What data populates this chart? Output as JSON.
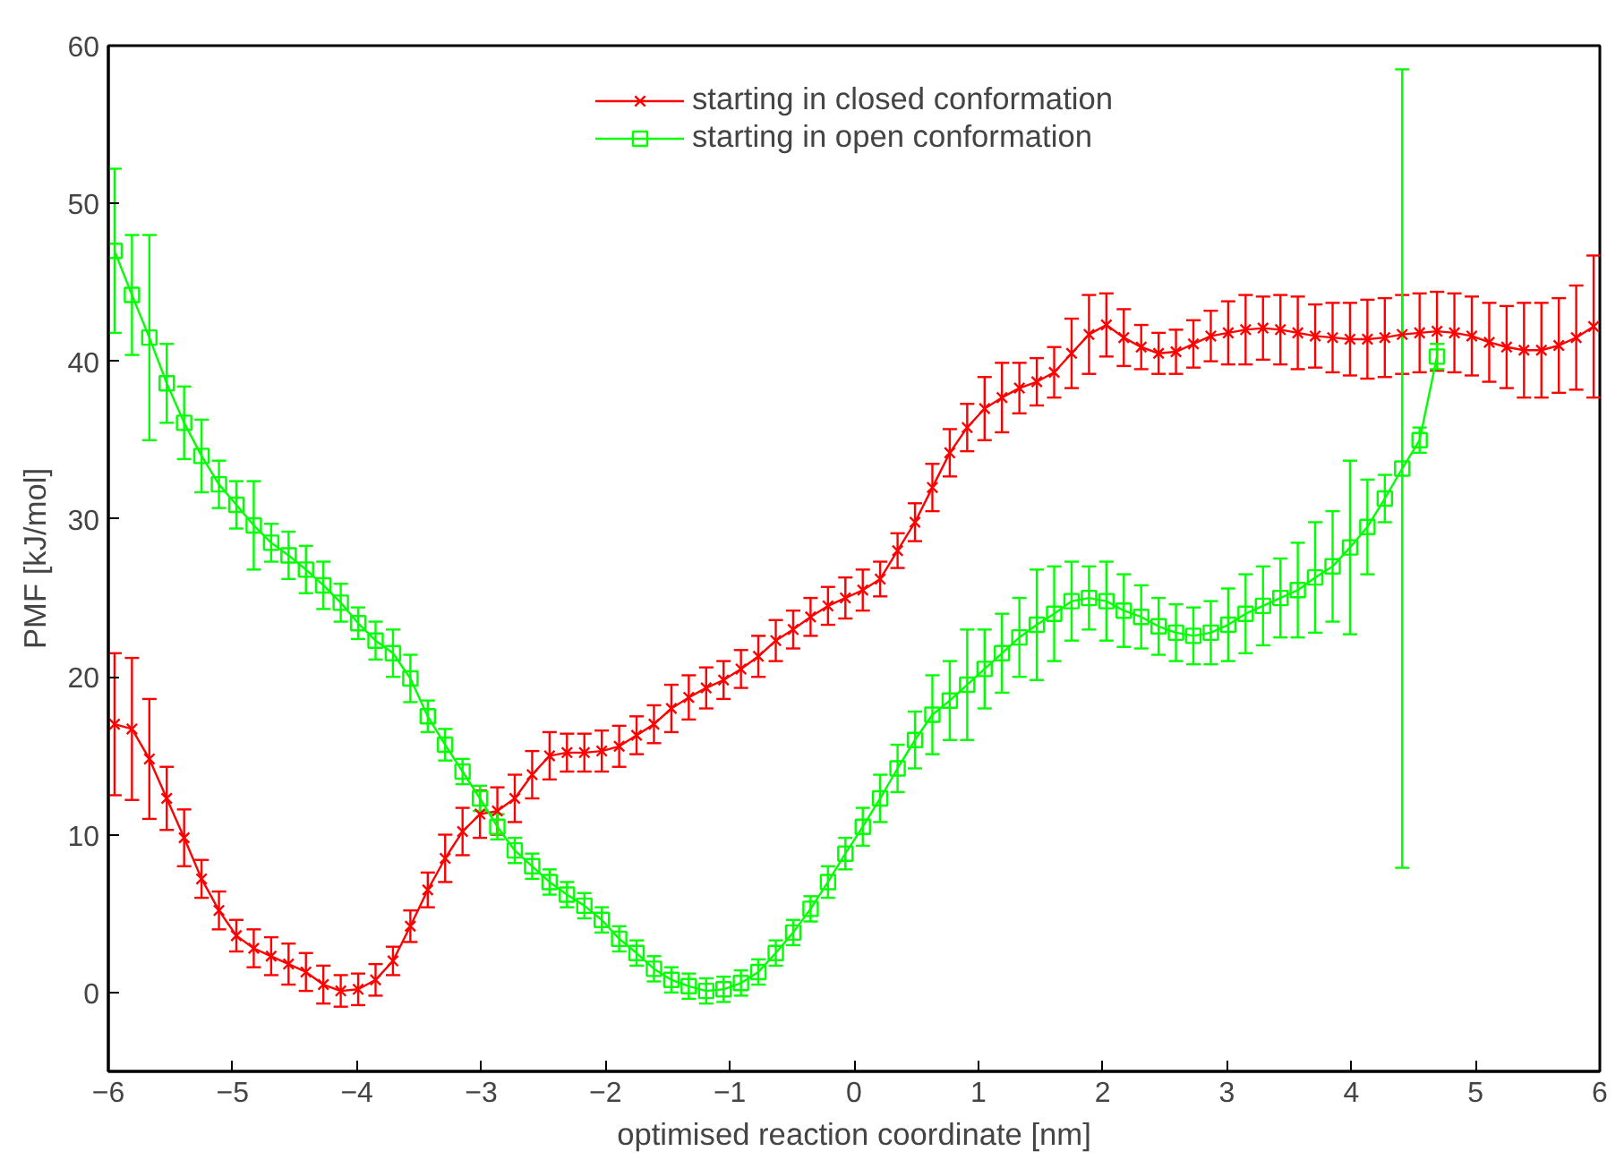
{
  "chart_data": {
    "type": "line",
    "xlabel": "optimised reaction coordinate [nm]",
    "ylabel": "PMF [kJ/mol]",
    "xlim": [
      -6,
      6
    ],
    "ylim": [
      -5,
      60
    ],
    "xticks": [
      -6,
      -5,
      -4,
      -3,
      -2,
      -1,
      0,
      1,
      2,
      3,
      4,
      5,
      6
    ],
    "yticks": [
      0,
      10,
      20,
      30,
      40,
      50,
      60
    ],
    "grid": false,
    "legend": "top",
    "line_style": "solid",
    "series": [
      {
        "name": "starting in closed conformation",
        "color": "#ff0000",
        "marker": "cross",
        "x": [
          -5.95,
          -5.81,
          -5.67,
          -5.53,
          -5.39,
          -5.25,
          -5.11,
          -4.97,
          -4.83,
          -4.69,
          -4.55,
          -4.41,
          -4.27,
          -4.13,
          -3.99,
          -3.85,
          -3.71,
          -3.57,
          -3.43,
          -3.29,
          -3.15,
          -3.01,
          -2.87,
          -2.73,
          -2.59,
          -2.45,
          -2.31,
          -2.17,
          -2.03,
          -1.89,
          -1.75,
          -1.61,
          -1.47,
          -1.33,
          -1.19,
          -1.05,
          -0.91,
          -0.77,
          -0.63,
          -0.49,
          -0.35,
          -0.21,
          -0.07,
          0.07,
          0.21,
          0.35,
          0.49,
          0.63,
          0.77,
          0.91,
          1.05,
          1.19,
          1.33,
          1.47,
          1.61,
          1.75,
          1.89,
          2.03,
          2.17,
          2.31,
          2.45,
          2.59,
          2.73,
          2.87,
          3.01,
          3.15,
          3.29,
          3.43,
          3.57,
          3.71,
          3.85,
          3.99,
          4.13,
          4.27,
          4.41,
          4.55,
          4.69,
          4.83,
          4.97,
          5.11,
          5.25,
          5.39,
          5.53,
          5.67,
          5.81,
          5.95
        ],
        "values": [
          17,
          16.7,
          14.8,
          12.3,
          9.8,
          7.2,
          5.2,
          3.6,
          2.8,
          2.3,
          1.8,
          1.3,
          0.5,
          0.1,
          0.2,
          0.8,
          2.0,
          4.2,
          6.5,
          8.5,
          10.2,
          11.3,
          11.5,
          12.3,
          13.8,
          15.0,
          15.2,
          15.2,
          15.3,
          15.6,
          16.3,
          17.0,
          18.0,
          18.7,
          19.3,
          19.8,
          20.5,
          21.3,
          22.3,
          23.0,
          23.8,
          24.5,
          25.0,
          25.5,
          26.2,
          28.0,
          29.8,
          32.0,
          34.2,
          35.8,
          37.0,
          37.7,
          38.3,
          38.7,
          39.3,
          40.5,
          41.7,
          42.3,
          41.5,
          40.9,
          40.5,
          40.6,
          41.1,
          41.6,
          41.8,
          42.0,
          42.1,
          42.0,
          41.8,
          41.6,
          41.5,
          41.4,
          41.4,
          41.5,
          41.7,
          41.8,
          41.9,
          41.8,
          41.6,
          41.2,
          40.9,
          40.7,
          40.7,
          41.0,
          41.5,
          42.2
        ],
        "errors": [
          4.5,
          4.5,
          3.8,
          2.0,
          1.8,
          1.2,
          1.2,
          1.0,
          1.2,
          1.2,
          1.3,
          1.2,
          1.2,
          1.0,
          1.0,
          1.0,
          0.9,
          1.0,
          1.1,
          1.5,
          1.5,
          1.5,
          1.5,
          1.5,
          1.5,
          1.5,
          1.2,
          1.2,
          1.3,
          1.3,
          1.2,
          1.2,
          1.5,
          1.4,
          1.3,
          1.2,
          1.2,
          1.3,
          1.3,
          1.2,
          1.2,
          1.2,
          1.3,
          1.3,
          1.1,
          1.1,
          1.2,
          1.5,
          1.5,
          1.5,
          2.0,
          2.2,
          1.6,
          1.5,
          1.6,
          2.2,
          2.5,
          2.0,
          1.8,
          1.4,
          1.3,
          1.4,
          1.5,
          1.6,
          2.0,
          2.2,
          2.0,
          2.2,
          2.3,
          2.0,
          2.2,
          2.3,
          2.5,
          2.5,
          2.5,
          2.5,
          2.5,
          2.5,
          2.5,
          2.5,
          2.6,
          3.0,
          3.0,
          3.0,
          3.3,
          4.5
        ]
      },
      {
        "name": "starting in open conformation",
        "color": "#00ff00",
        "marker": "square",
        "x": [
          -5.95,
          -5.81,
          -5.67,
          -5.53,
          -5.39,
          -5.25,
          -5.11,
          -4.97,
          -4.83,
          -4.69,
          -4.55,
          -4.41,
          -4.27,
          -4.13,
          -3.99,
          -3.85,
          -3.71,
          -3.57,
          -3.43,
          -3.29,
          -3.15,
          -3.01,
          -2.87,
          -2.73,
          -2.59,
          -2.45,
          -2.31,
          -2.17,
          -2.03,
          -1.89,
          -1.75,
          -1.61,
          -1.47,
          -1.33,
          -1.19,
          -1.05,
          -0.91,
          -0.77,
          -0.63,
          -0.49,
          -0.35,
          -0.21,
          -0.07,
          0.07,
          0.21,
          0.35,
          0.49,
          0.63,
          0.77,
          0.91,
          1.05,
          1.19,
          1.33,
          1.47,
          1.61,
          1.75,
          1.89,
          2.03,
          2.17,
          2.31,
          2.45,
          2.59,
          2.73,
          2.87,
          3.01,
          3.15,
          3.29,
          3.43,
          3.57,
          3.71,
          3.85,
          3.99,
          4.13,
          4.27,
          4.41,
          4.55,
          4.69
        ],
        "values": [
          47,
          44.2,
          41.5,
          38.6,
          36.1,
          34.0,
          32.2,
          30.9,
          29.6,
          28.5,
          27.7,
          26.8,
          25.8,
          24.7,
          23.4,
          22.3,
          21.5,
          19.9,
          17.5,
          15.7,
          14.0,
          12.3,
          10.5,
          9.0,
          8.0,
          7.0,
          6.2,
          5.5,
          4.6,
          3.4,
          2.5,
          1.5,
          0.8,
          0.4,
          0.1,
          0.2,
          0.6,
          1.3,
          2.5,
          3.8,
          5.3,
          7.0,
          8.8,
          10.5,
          12.3,
          14.2,
          16.0,
          17.6,
          18.5,
          19.5,
          20.5,
          21.5,
          22.5,
          23.3,
          24.0,
          24.8,
          25.0,
          24.8,
          24.2,
          23.8,
          23.2,
          22.8,
          22.6,
          22.8,
          23.3,
          24.0,
          24.5,
          25.0,
          25.5,
          26.3,
          27.0,
          28.2,
          29.5,
          31.3,
          33.2,
          35.0,
          40.3
        ],
        "errors": [
          5.2,
          3.8,
          6.5,
          2.5,
          2.3,
          2.3,
          1.5,
          1.5,
          2.8,
          1.2,
          1.5,
          1.5,
          1.5,
          1.2,
          1.0,
          1.2,
          1.5,
          1.5,
          1.0,
          1.0,
          0.8,
          0.8,
          0.8,
          0.8,
          0.8,
          0.8,
          0.8,
          0.8,
          0.8,
          0.8,
          0.8,
          0.8,
          0.8,
          0.8,
          0.8,
          0.8,
          0.8,
          0.8,
          0.8,
          0.8,
          0.8,
          1.0,
          1.0,
          1.2,
          1.5,
          1.5,
          1.8,
          2.5,
          2.5,
          3.5,
          2.5,
          2.5,
          2.5,
          3.5,
          3.0,
          2.5,
          2.0,
          2.5,
          2.3,
          2.0,
          1.8,
          1.8,
          1.8,
          2.0,
          2.3,
          2.5,
          2.5,
          2.5,
          3.0,
          3.5,
          3.5,
          5.5,
          3.0,
          1.5,
          25.3,
          0.8,
          0.8
        ]
      }
    ]
  }
}
